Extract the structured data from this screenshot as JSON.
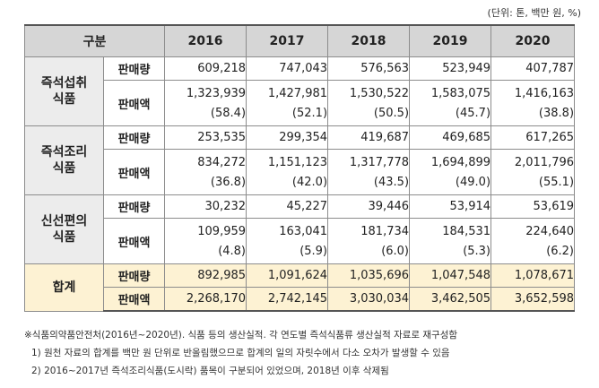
{
  "unit_note": "(단위: 톤, 백만 원, %)",
  "header": {
    "category": "구분",
    "years": [
      "2016",
      "2017",
      "2018",
      "2019",
      "2020"
    ]
  },
  "labels": {
    "quantity": "판매량",
    "amount": "판매액"
  },
  "groups": [
    {
      "name_line1": "즉석섭취",
      "name_line2": "식품",
      "quantity": [
        "609,218",
        "747,043",
        "576,563",
        "523,949",
        "407,787"
      ],
      "amount": [
        "1,323,939",
        "1,427,981",
        "1,530,522",
        "1,583,075",
        "1,416,163"
      ],
      "share": [
        "(58.4)",
        "(52.1)",
        "(50.5)",
        "(45.7)",
        "(38.8)"
      ]
    },
    {
      "name_line1": "즉석조리",
      "name_line2": "식품",
      "quantity": [
        "253,535",
        "299,354",
        "419,687",
        "469,685",
        "617,265"
      ],
      "amount": [
        "834,272",
        "1,151,123",
        "1,317,778",
        "1,694,899",
        "2,011,796"
      ],
      "share": [
        "(36.8)",
        "(42.0)",
        "(43.5)",
        "(49.0)",
        "(55.1)"
      ]
    },
    {
      "name_line1": "신선편의",
      "name_line2": "식품",
      "quantity": [
        "30,232",
        "45,227",
        "39,446",
        "53,914",
        "53,619"
      ],
      "amount": [
        "109,959",
        "163,041",
        "181,734",
        "184,531",
        "224,640"
      ],
      "share": [
        "(4.8)",
        "(5.9)",
        "(6.0)",
        "(5.3)",
        "(6.2)"
      ]
    }
  ],
  "total": {
    "name": "합계",
    "quantity": [
      "892,985",
      "1,091,624",
      "1,035,696",
      "1,047,548",
      "1,078,671"
    ],
    "amount": [
      "2,268,170",
      "2,742,145",
      "3,030,034",
      "3,462,505",
      "3,652,598"
    ]
  },
  "notes": {
    "source": "※식품의약품안전처(2016년~2020년). 식품 등의 생산실적. 각 연도별 즉석식품류 생산실적 자료로 재구성함",
    "note1": "1) 원천 자료의 합계를 백만 원 단위로 반올림했으므로 합계의 일의 자릿수에서 다소 오차가 발생할 수 있음",
    "note2": "2) 2016~2017년 즉석조리식품(도시락) 품목이 구분되어 있었으며, 2018년 이후 삭제됨"
  }
}
